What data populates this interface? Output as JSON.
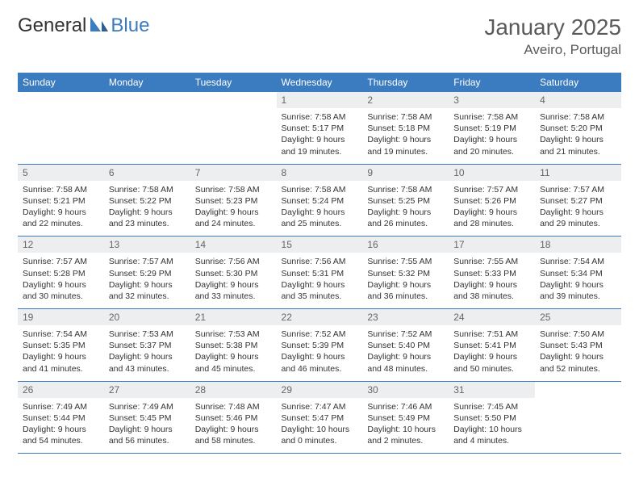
{
  "logo": {
    "part1": "General",
    "part2": "Blue"
  },
  "header": {
    "month_title": "January 2025",
    "location": "Aveiro, Portugal"
  },
  "calendar": {
    "day_headers": [
      "Sunday",
      "Monday",
      "Tuesday",
      "Wednesday",
      "Thursday",
      "Friday",
      "Saturday"
    ],
    "header_bg": "#3b7bbf",
    "header_fg": "#ffffff",
    "daynum_bg": "#eceef0",
    "row_border": "#3b7bbf",
    "weeks": [
      [
        {
          "n": "",
          "t": ""
        },
        {
          "n": "",
          "t": ""
        },
        {
          "n": "",
          "t": ""
        },
        {
          "n": "1",
          "t": "Sunrise: 7:58 AM\nSunset: 5:17 PM\nDaylight: 9 hours and 19 minutes."
        },
        {
          "n": "2",
          "t": "Sunrise: 7:58 AM\nSunset: 5:18 PM\nDaylight: 9 hours and 19 minutes."
        },
        {
          "n": "3",
          "t": "Sunrise: 7:58 AM\nSunset: 5:19 PM\nDaylight: 9 hours and 20 minutes."
        },
        {
          "n": "4",
          "t": "Sunrise: 7:58 AM\nSunset: 5:20 PM\nDaylight: 9 hours and 21 minutes."
        }
      ],
      [
        {
          "n": "5",
          "t": "Sunrise: 7:58 AM\nSunset: 5:21 PM\nDaylight: 9 hours and 22 minutes."
        },
        {
          "n": "6",
          "t": "Sunrise: 7:58 AM\nSunset: 5:22 PM\nDaylight: 9 hours and 23 minutes."
        },
        {
          "n": "7",
          "t": "Sunrise: 7:58 AM\nSunset: 5:23 PM\nDaylight: 9 hours and 24 minutes."
        },
        {
          "n": "8",
          "t": "Sunrise: 7:58 AM\nSunset: 5:24 PM\nDaylight: 9 hours and 25 minutes."
        },
        {
          "n": "9",
          "t": "Sunrise: 7:58 AM\nSunset: 5:25 PM\nDaylight: 9 hours and 26 minutes."
        },
        {
          "n": "10",
          "t": "Sunrise: 7:57 AM\nSunset: 5:26 PM\nDaylight: 9 hours and 28 minutes."
        },
        {
          "n": "11",
          "t": "Sunrise: 7:57 AM\nSunset: 5:27 PM\nDaylight: 9 hours and 29 minutes."
        }
      ],
      [
        {
          "n": "12",
          "t": "Sunrise: 7:57 AM\nSunset: 5:28 PM\nDaylight: 9 hours and 30 minutes."
        },
        {
          "n": "13",
          "t": "Sunrise: 7:57 AM\nSunset: 5:29 PM\nDaylight: 9 hours and 32 minutes."
        },
        {
          "n": "14",
          "t": "Sunrise: 7:56 AM\nSunset: 5:30 PM\nDaylight: 9 hours and 33 minutes."
        },
        {
          "n": "15",
          "t": "Sunrise: 7:56 AM\nSunset: 5:31 PM\nDaylight: 9 hours and 35 minutes."
        },
        {
          "n": "16",
          "t": "Sunrise: 7:55 AM\nSunset: 5:32 PM\nDaylight: 9 hours and 36 minutes."
        },
        {
          "n": "17",
          "t": "Sunrise: 7:55 AM\nSunset: 5:33 PM\nDaylight: 9 hours and 38 minutes."
        },
        {
          "n": "18",
          "t": "Sunrise: 7:54 AM\nSunset: 5:34 PM\nDaylight: 9 hours and 39 minutes."
        }
      ],
      [
        {
          "n": "19",
          "t": "Sunrise: 7:54 AM\nSunset: 5:35 PM\nDaylight: 9 hours and 41 minutes."
        },
        {
          "n": "20",
          "t": "Sunrise: 7:53 AM\nSunset: 5:37 PM\nDaylight: 9 hours and 43 minutes."
        },
        {
          "n": "21",
          "t": "Sunrise: 7:53 AM\nSunset: 5:38 PM\nDaylight: 9 hours and 45 minutes."
        },
        {
          "n": "22",
          "t": "Sunrise: 7:52 AM\nSunset: 5:39 PM\nDaylight: 9 hours and 46 minutes."
        },
        {
          "n": "23",
          "t": "Sunrise: 7:52 AM\nSunset: 5:40 PM\nDaylight: 9 hours and 48 minutes."
        },
        {
          "n": "24",
          "t": "Sunrise: 7:51 AM\nSunset: 5:41 PM\nDaylight: 9 hours and 50 minutes."
        },
        {
          "n": "25",
          "t": "Sunrise: 7:50 AM\nSunset: 5:43 PM\nDaylight: 9 hours and 52 minutes."
        }
      ],
      [
        {
          "n": "26",
          "t": "Sunrise: 7:49 AM\nSunset: 5:44 PM\nDaylight: 9 hours and 54 minutes."
        },
        {
          "n": "27",
          "t": "Sunrise: 7:49 AM\nSunset: 5:45 PM\nDaylight: 9 hours and 56 minutes."
        },
        {
          "n": "28",
          "t": "Sunrise: 7:48 AM\nSunset: 5:46 PM\nDaylight: 9 hours and 58 minutes."
        },
        {
          "n": "29",
          "t": "Sunrise: 7:47 AM\nSunset: 5:47 PM\nDaylight: 10 hours and 0 minutes."
        },
        {
          "n": "30",
          "t": "Sunrise: 7:46 AM\nSunset: 5:49 PM\nDaylight: 10 hours and 2 minutes."
        },
        {
          "n": "31",
          "t": "Sunrise: 7:45 AM\nSunset: 5:50 PM\nDaylight: 10 hours and 4 minutes."
        },
        {
          "n": "",
          "t": ""
        }
      ]
    ]
  }
}
